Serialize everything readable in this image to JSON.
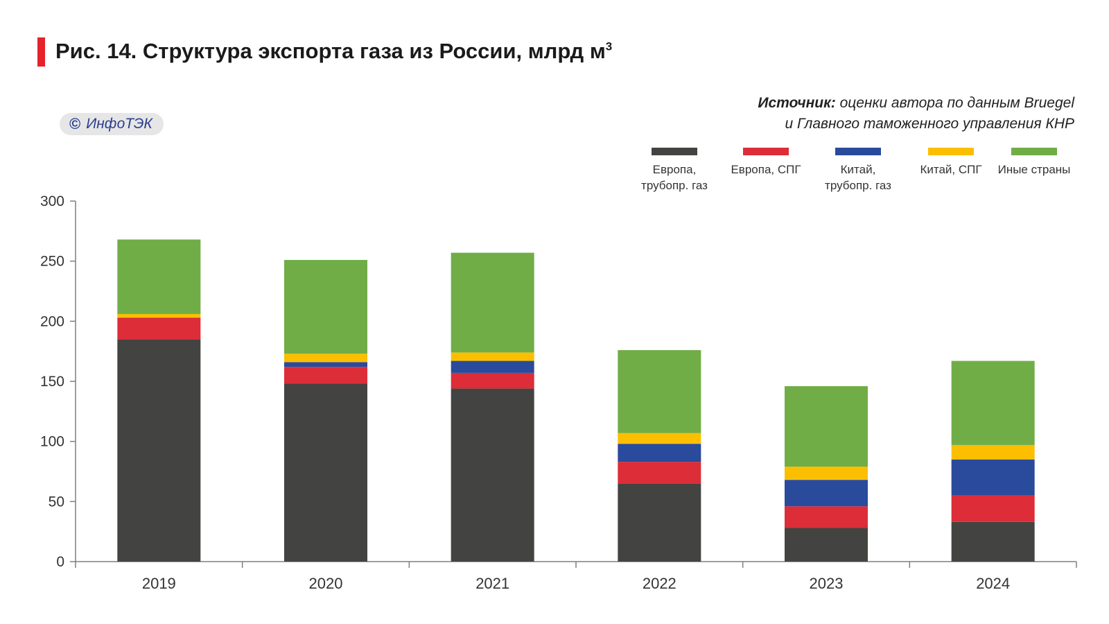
{
  "header": {
    "title": "Рис. 14. Структура экспорта газа из России, млрд м",
    "title_sup": "3"
  },
  "source": {
    "label": "Источник:",
    "line1": " оценки автора по данным Bruegel",
    "line2": "и Главного таможенного управления КНР"
  },
  "watermark": {
    "icon": "copyright-icon",
    "text": "ИнфоТЭК"
  },
  "colors": {
    "europe_pipe": "#434341",
    "europe_lng": "#dc2d38",
    "china_pipe": "#2a4a9c",
    "china_lng": "#fbbf00",
    "other": "#70ad47",
    "accent": "#e5232b"
  },
  "chart_data": {
    "type": "bar",
    "stacked": true,
    "categories": [
      "2019",
      "2020",
      "2021",
      "2022",
      "2023",
      "2024"
    ],
    "ylim": [
      0,
      300
    ],
    "yticks": [
      0,
      50,
      100,
      150,
      200,
      250,
      300
    ],
    "xlabel": "",
    "ylabel": "",
    "legend_position": "top-right",
    "grid": false,
    "series": [
      {
        "name": "Европа, трубопр. газ",
        "key": "europe_pipe",
        "color": "#434341",
        "values": [
          185,
          148,
          144,
          65,
          28,
          33
        ]
      },
      {
        "name": "Европа, СПГ",
        "key": "europe_lng",
        "color": "#dc2d38",
        "values": [
          18,
          14,
          13,
          18,
          18,
          22
        ]
      },
      {
        "name": "Китай, трубопр. газ",
        "key": "china_pipe",
        "color": "#2a4a9c",
        "values": [
          0,
          4,
          10,
          15,
          22,
          30
        ]
      },
      {
        "name": "Китай, СПГ",
        "key": "china_lng",
        "color": "#fbbf00",
        "values": [
          3,
          7,
          7,
          9,
          11,
          12
        ]
      },
      {
        "name": "Иные страны",
        "key": "other",
        "color": "#70ad47",
        "values": [
          62,
          78,
          83,
          69,
          67,
          70
        ]
      }
    ]
  }
}
